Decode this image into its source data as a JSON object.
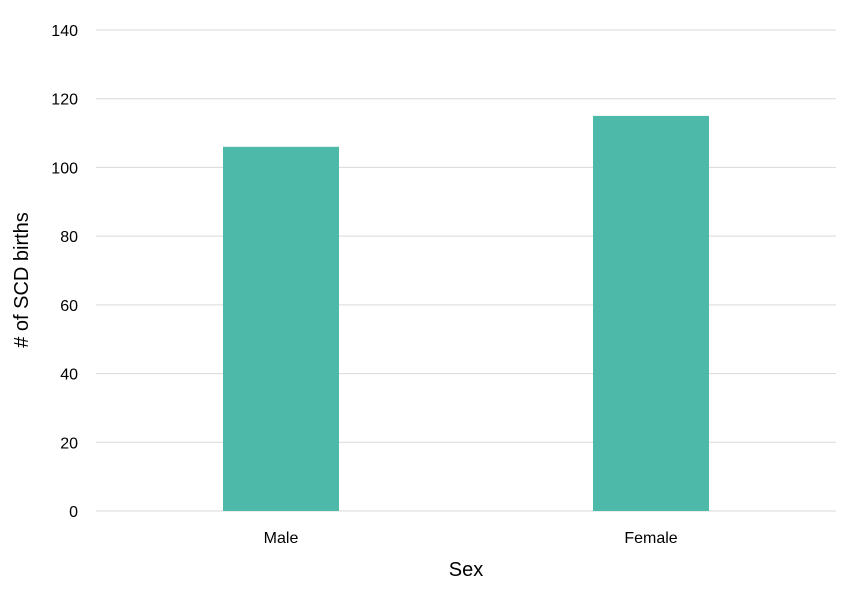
{
  "chart_data": {
    "type": "bar",
    "categories": [
      "Male",
      "Female"
    ],
    "values": [
      106,
      115
    ],
    "title": "",
    "xlabel": "Sex",
    "ylabel": "# of SCD births",
    "ylim": [
      0,
      140
    ],
    "ytick_step": 20,
    "grid": true,
    "legend": "none",
    "bar_color": "#4dbaa9",
    "grid_color": "#d9d9d9"
  }
}
